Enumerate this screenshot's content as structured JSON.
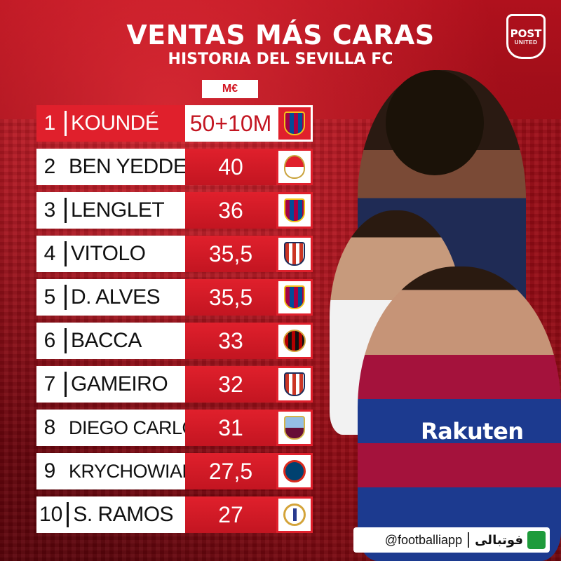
{
  "header": {
    "title": "VENTAS MÁS CARAS",
    "subtitle": "HISTORIA DEL SEVILLA FC",
    "logo_line1": "POST",
    "logo_line2": "UNITED",
    "unit": "M€"
  },
  "rows": [
    {
      "rank": "1",
      "name": "KOUNDÉ",
      "value": "50+10M",
      "club_icon": "barcelona-crest"
    },
    {
      "rank": "2",
      "name": "BEN YEDDER",
      "value": "40",
      "club_icon": "monaco-crest"
    },
    {
      "rank": "3",
      "name": "LENGLET",
      "value": "36",
      "club_icon": "barcelona-crest"
    },
    {
      "rank": "4",
      "name": "VITOLO",
      "value": "35,5",
      "club_icon": "atletico-madrid-crest"
    },
    {
      "rank": "5",
      "name": "D. ALVES",
      "value": "35,5",
      "club_icon": "barcelona-crest"
    },
    {
      "rank": "6",
      "name": "BACCA",
      "value": "33",
      "club_icon": "ac-milan-crest"
    },
    {
      "rank": "7",
      "name": "GAMEIRO",
      "value": "32",
      "club_icon": "atletico-madrid-crest"
    },
    {
      "rank": "8",
      "name": "DIEGO CARLOS",
      "value": "31",
      "club_icon": "aston-villa-crest"
    },
    {
      "rank": "9",
      "name": "KRYCHOWIAK",
      "value": "27,5",
      "club_icon": "psg-crest"
    },
    {
      "rank": "10",
      "name": "S. RAMOS",
      "value": "27",
      "club_icon": "real-madrid-crest"
    }
  ],
  "sponsor": "Rakuten",
  "footer": {
    "handle": "@footballiapp",
    "brand": "فوتبالی"
  },
  "colors": {
    "accent": "#e0202c",
    "background": "#8e0a14",
    "text_light": "#ffffff"
  }
}
